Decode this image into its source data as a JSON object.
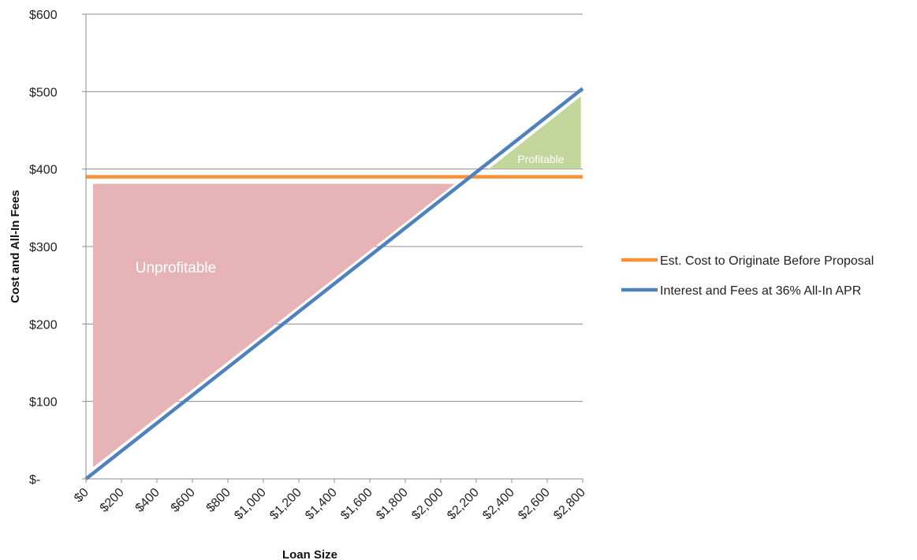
{
  "chart_data": {
    "type": "line",
    "title": "",
    "xlabel": "Loan Size",
    "ylabel": "Cost and All-In Fees",
    "xlim": [
      0,
      2800
    ],
    "ylim": [
      0,
      600
    ],
    "x_ticks": [
      0,
      200,
      400,
      600,
      800,
      1000,
      1200,
      1400,
      1600,
      1800,
      2000,
      2200,
      2400,
      2600,
      2800
    ],
    "x_tick_labels": [
      "$0",
      "$200",
      "$400",
      "$600",
      "$800",
      "$1,000",
      "$1,200",
      "$1,400",
      "$1,600",
      "$1,800",
      "$2,000",
      "$2,200",
      "$2,400",
      "$2,600",
      "$2,800"
    ],
    "y_ticks": [
      0,
      100,
      200,
      300,
      400,
      500,
      600
    ],
    "y_tick_labels": [
      "$-",
      "$100",
      "$200",
      "$300",
      "$400",
      "$500",
      "$600"
    ],
    "grid": "horizontal",
    "legend_position": "right",
    "series": [
      {
        "name": "Est. Cost to Originate Before Proposal",
        "color": "#F7923A",
        "x": [
          0,
          2800
        ],
        "y": [
          390,
          390
        ]
      },
      {
        "name": "Interest and Fees at 36% All-In APR",
        "color": "#4F81BD",
        "x": [
          0,
          2800
        ],
        "y": [
          0,
          504
        ]
      }
    ],
    "regions": [
      {
        "label": "Unprofitable",
        "color": "#E6B4B6",
        "label_color": "#ffffff",
        "polygon": [
          [
            40,
            15
          ],
          [
            40,
            381
          ],
          [
            2080,
            381
          ]
        ]
      },
      {
        "label": "Profitable",
        "color": "#C3D69B",
        "label_color": "#ffffff",
        "polygon": [
          [
            2270,
            400
          ],
          [
            2790,
            400
          ],
          [
            2790,
            494
          ]
        ]
      }
    ]
  }
}
